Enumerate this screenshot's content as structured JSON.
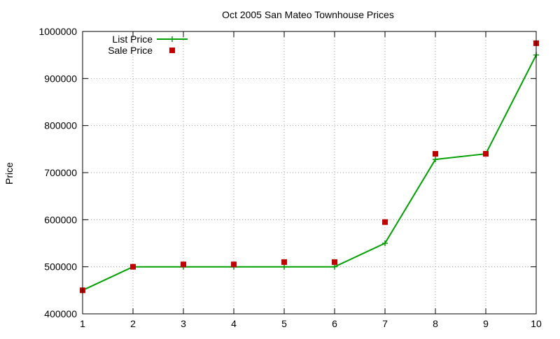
{
  "chart_data": {
    "type": "line",
    "title": "Oct 2005 San Mateo Townhouse Prices",
    "xlabel": "",
    "ylabel": "Price",
    "x": [
      1,
      2,
      3,
      4,
      5,
      6,
      7,
      8,
      9,
      10
    ],
    "xlim": [
      1,
      10
    ],
    "ylim": [
      400000,
      1000000
    ],
    "xticks": [
      "1",
      "2",
      "3",
      "4",
      "5",
      "6",
      "7",
      "8",
      "9",
      "10"
    ],
    "yticks": [
      "400000",
      "500000",
      "600000",
      "700000",
      "800000",
      "900000",
      "1000000"
    ],
    "grid": true,
    "legend_position": "top-left",
    "series": [
      {
        "name": "List Price",
        "style": "line-with-plus",
        "color": "#00a000",
        "values": [
          450000,
          500000,
          500000,
          500000,
          500000,
          500000,
          550000,
          728000,
          740000,
          950000
        ]
      },
      {
        "name": "Sale Price",
        "style": "square-points",
        "color": "#c00000",
        "values": [
          450000,
          500000,
          505000,
          505000,
          510000,
          510000,
          595000,
          740000,
          740000,
          975000
        ]
      }
    ]
  }
}
